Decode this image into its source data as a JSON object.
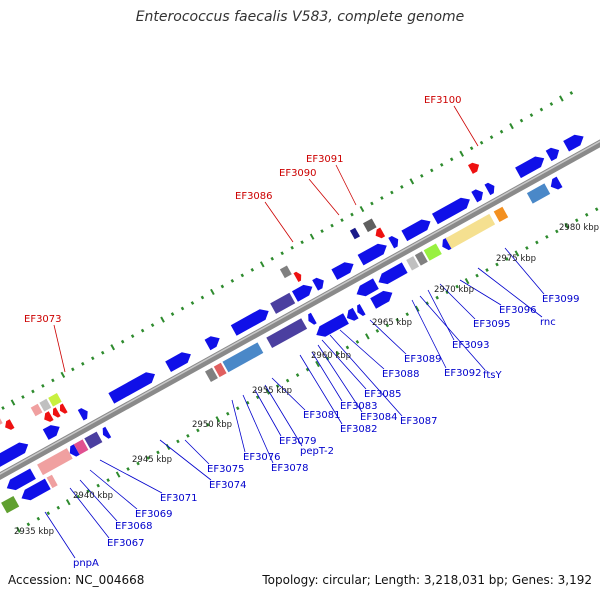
{
  "title": "Enterococcus faecalis V583, complete genome",
  "footer": {
    "accession": "Accession: NC_004668",
    "stats": "Topology: circular; Length: 3,218,031 bp; Genes: 3,192"
  },
  "colors": {
    "forward_gene": "#1010e8",
    "reverse_gene_red": "#ee1111",
    "backbone": "#8a8a8a",
    "tick_dots": "#2e8b2e",
    "label_blue": "#0000cc",
    "label_red": "#cc0000"
  },
  "scale_labels": [
    "2935 kbp",
    "2940 kbp",
    "2945 kbp",
    "2950 kbp",
    "2955 kbp",
    "2960 kbp",
    "2965 kbp",
    "2970 kbp",
    "2975 kbp",
    "2980 kbp"
  ],
  "gene_labels_lower": [
    "pnpA",
    "EF3067",
    "EF3068",
    "EF3069",
    "EF3071",
    "EF3074",
    "EF3075",
    "EF3076",
    "EF3078",
    "EF3079",
    "pepT-2",
    "EF3081",
    "EF3082",
    "EF3083",
    "EF3084",
    "EF3085",
    "EF3087",
    "EF3088",
    "EF3089",
    "EF3092",
    "ftsY",
    "EF3093",
    "EF3095",
    "EF3096",
    "rnc",
    "EF3099"
  ],
  "gene_labels_upper": [
    "EF3073",
    "EF3086",
    "EF3090",
    "EF3091",
    "EF3100"
  ]
}
